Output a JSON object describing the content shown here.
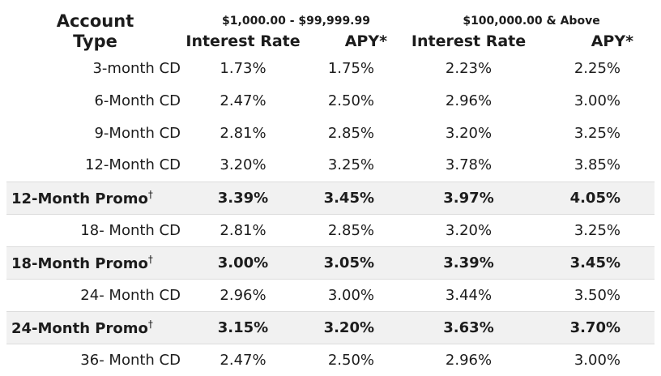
{
  "header": {
    "account_type_line1": "Account",
    "account_type_line2": "Type",
    "tier1": "$1,000.00 - $99,999.99",
    "tier2": "$100,000.00 & Above",
    "interest_rate": "Interest Rate",
    "apy": "APY*"
  },
  "rows": [
    {
      "name": "3-month CD",
      "dagger": "",
      "promo": false,
      "t1_rate": "1.73%",
      "t1_apy": "1.75%",
      "t2_rate": "2.23%",
      "t2_apy": "2.25%"
    },
    {
      "name": "6-Month CD",
      "dagger": "",
      "promo": false,
      "t1_rate": "2.47%",
      "t1_apy": "2.50%",
      "t2_rate": "2.96%",
      "t2_apy": "3.00%"
    },
    {
      "name": "9-Month CD",
      "dagger": "",
      "promo": false,
      "t1_rate": "2.81%",
      "t1_apy": "2.85%",
      "t2_rate": "3.20%",
      "t2_apy": "3.25%"
    },
    {
      "name": "12-Month CD",
      "dagger": "",
      "promo": false,
      "t1_rate": "3.20%",
      "t1_apy": "3.25%",
      "t2_rate": "3.78%",
      "t2_apy": "3.85%"
    },
    {
      "name": "12-Month Promo",
      "dagger": "†",
      "promo": true,
      "t1_rate": "3.39%",
      "t1_apy": "3.45%",
      "t2_rate": "3.97%",
      "t2_apy": "4.05%"
    },
    {
      "name": "18- Month CD",
      "dagger": "",
      "promo": false,
      "t1_rate": "2.81%",
      "t1_apy": "2.85%",
      "t2_rate": "3.20%",
      "t2_apy": "3.25%"
    },
    {
      "name": "18-Month Promo",
      "dagger": "†",
      "promo": true,
      "t1_rate": "3.00%",
      "t1_apy": "3.05%",
      "t2_rate": "3.39%",
      "t2_apy": "3.45%"
    },
    {
      "name": "24- Month CD",
      "dagger": "",
      "promo": false,
      "t1_rate": "2.96%",
      "t1_apy": "3.00%",
      "t2_rate": "3.44%",
      "t2_apy": "3.50%"
    },
    {
      "name": "24-Month Promo",
      "dagger": "†",
      "promo": true,
      "t1_rate": "3.15%",
      "t1_apy": "3.20%",
      "t2_rate": "3.63%",
      "t2_apy": "3.70%"
    },
    {
      "name": "36- Month CD",
      "dagger": "",
      "promo": false,
      "t1_rate": "2.47%",
      "t1_apy": "2.50%",
      "t2_rate": "2.96%",
      "t2_apy": "3.00%"
    }
  ]
}
